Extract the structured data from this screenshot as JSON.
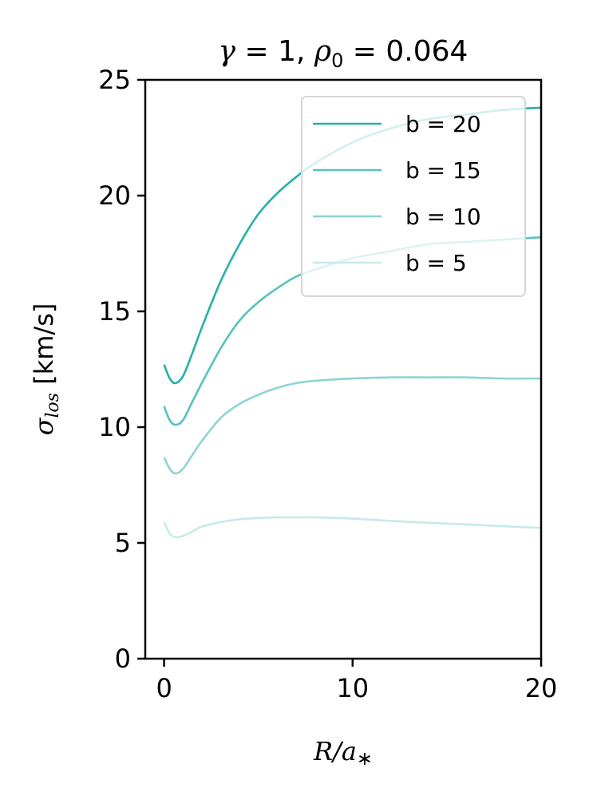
{
  "chart_data": {
    "type": "line",
    "title": "γ = 1, ρ₀ = 0.064",
    "title_parts": {
      "gamma_symbol": "γ",
      "gamma_eq": " = 1, ",
      "rho_symbol": "ρ",
      "rho_sub": "0",
      "rho_eq": " = 0.064"
    },
    "xlabel": "R/a∗",
    "xlabel_parts": {
      "main": "R/a",
      "sub": "∗"
    },
    "ylabel": "σlos [km/s]",
    "ylabel_parts": {
      "sigma": "σ",
      "sub": "los",
      "rest": " [km/s]"
    },
    "xlim": [
      -1,
      20
    ],
    "ylim": [
      0,
      25
    ],
    "xticks": [
      0,
      10,
      20
    ],
    "xtick_labels": [
      "0",
      "10",
      "20"
    ],
    "yticks": [
      0,
      5,
      10,
      15,
      20,
      25
    ],
    "ytick_labels": [
      "0",
      "5",
      "10",
      "15",
      "20",
      "25"
    ],
    "grid": false,
    "legend_position": "top-right",
    "series": [
      {
        "name": "b = 20",
        "color": "#26b0aa",
        "x": [
          0,
          0.3,
          0.6,
          1,
          1.5,
          2,
          3,
          4,
          5,
          6,
          7,
          8,
          10,
          12,
          14,
          16,
          18,
          20
        ],
        "y": [
          12.7,
          12.1,
          11.9,
          12.2,
          13.2,
          14.3,
          16.3,
          17.9,
          19.2,
          20.1,
          20.8,
          21.4,
          22.3,
          22.9,
          23.3,
          23.5,
          23.7,
          23.8
        ]
      },
      {
        "name": "b = 15",
        "color": "#55c2bd",
        "x": [
          0,
          0.3,
          0.6,
          1,
          1.5,
          2,
          3,
          4,
          5,
          6,
          7,
          8,
          10,
          12,
          14,
          16,
          18,
          20
        ],
        "y": [
          10.9,
          10.3,
          10.1,
          10.3,
          11.1,
          11.9,
          13.4,
          14.6,
          15.4,
          16.0,
          16.5,
          16.8,
          17.3,
          17.6,
          17.9,
          18.0,
          18.1,
          18.2
        ]
      },
      {
        "name": "b = 10",
        "color": "#8bd5d1",
        "x": [
          0,
          0.3,
          0.6,
          1,
          1.5,
          2,
          3,
          4,
          5,
          6,
          7,
          8,
          10,
          12,
          14,
          16,
          18,
          20
        ],
        "y": [
          8.7,
          8.2,
          8.0,
          8.2,
          8.8,
          9.4,
          10.4,
          11.0,
          11.4,
          11.7,
          11.9,
          12.0,
          12.1,
          12.15,
          12.15,
          12.15,
          12.1,
          12.1
        ]
      },
      {
        "name": "b = 5",
        "color": "#c5ebe8",
        "x": [
          0,
          0.3,
          0.6,
          1,
          1.5,
          2,
          3,
          4,
          5,
          6,
          7,
          8,
          10,
          12,
          14,
          16,
          18,
          20
        ],
        "y": [
          5.9,
          5.4,
          5.25,
          5.3,
          5.5,
          5.7,
          5.9,
          6.02,
          6.07,
          6.1,
          6.1,
          6.1,
          6.05,
          5.95,
          5.87,
          5.8,
          5.72,
          5.65
        ]
      }
    ]
  }
}
